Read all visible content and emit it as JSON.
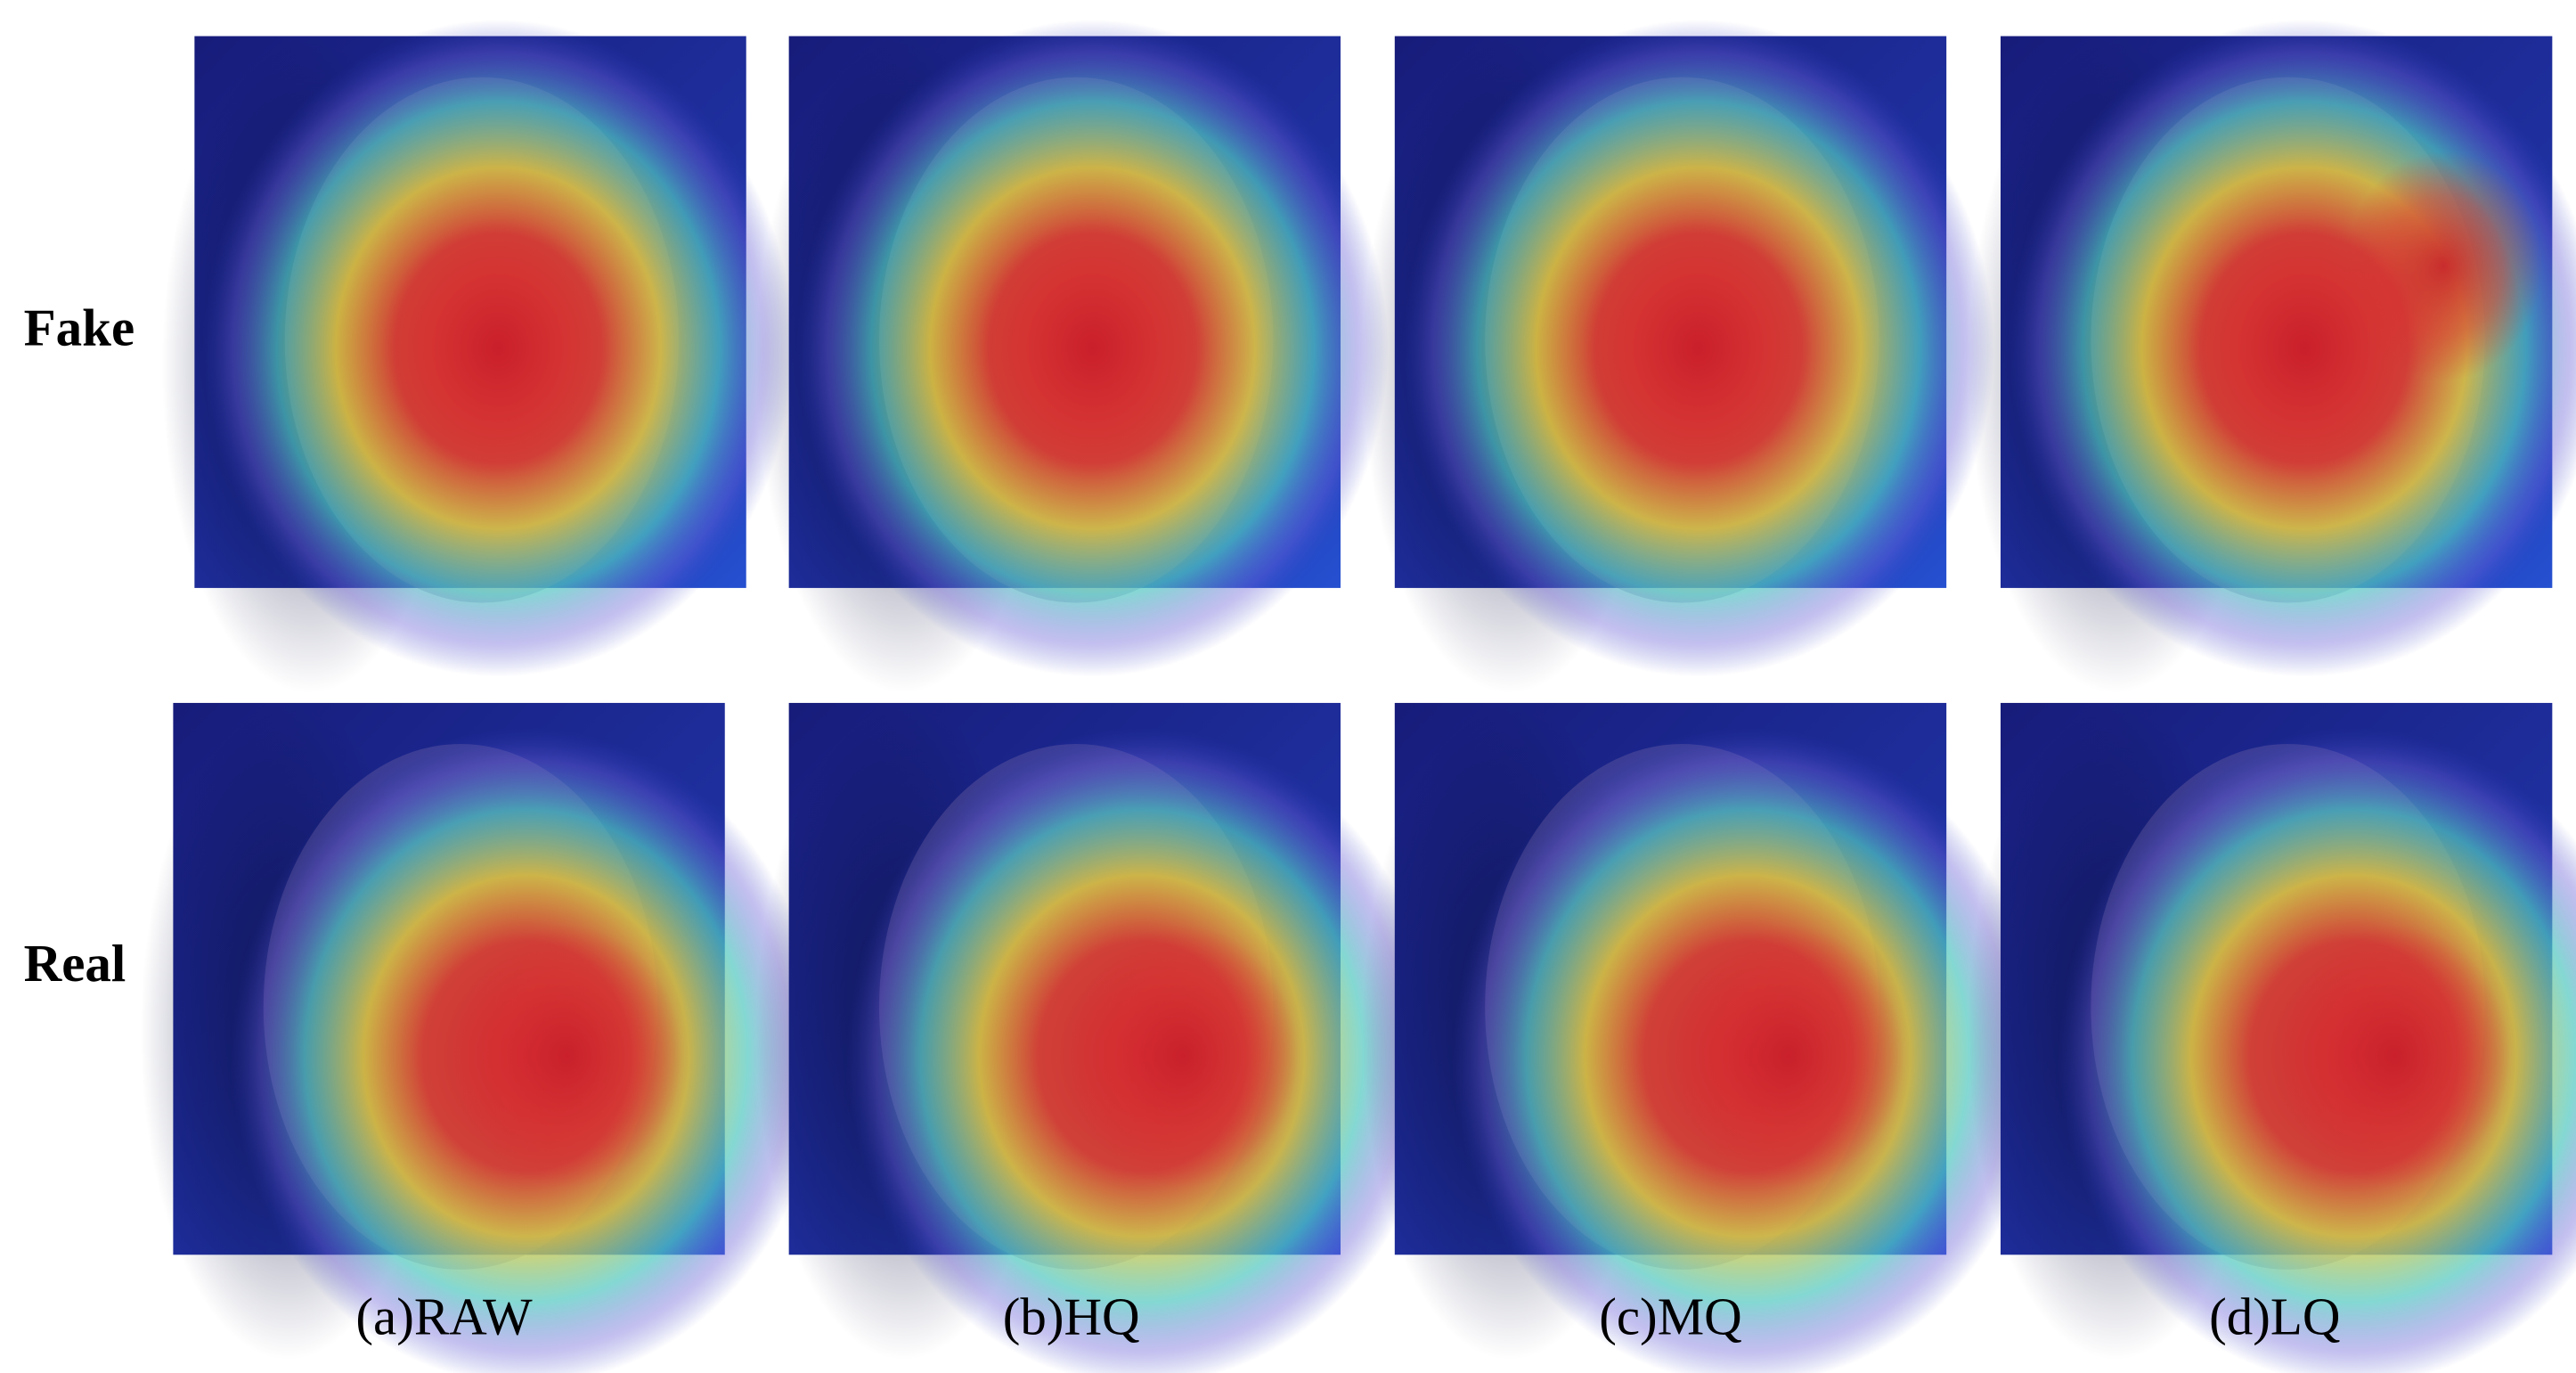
{
  "rows": [
    {
      "label": "Fake"
    },
    {
      "label": "Real"
    }
  ],
  "columns": [
    {
      "caption": "(a)RAW"
    },
    {
      "caption": "(b)HQ"
    },
    {
      "caption": "(c)MQ"
    },
    {
      "caption": "(d)LQ"
    }
  ]
}
